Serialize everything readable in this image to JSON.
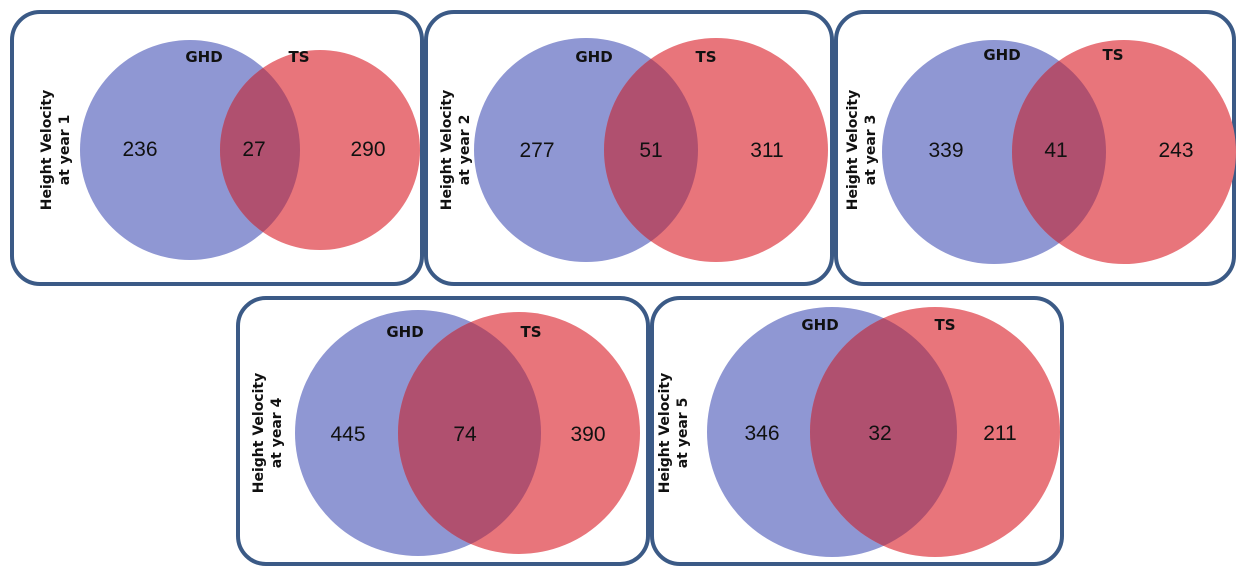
{
  "colors": {
    "left_set": "#8f97d3",
    "right_set": "#e8757b",
    "overlap": "#b0506f",
    "frame": "#3b5a86"
  },
  "set_labels": {
    "left": "GHD",
    "right": "TS"
  },
  "panels": [
    {
      "title_line1": "Height Velocity",
      "title_line2": "at year 1",
      "left_only": "236",
      "both": "27",
      "right_only": "290"
    },
    {
      "title_line1": "Height Velocity",
      "title_line2": "at year 2",
      "left_only": "277",
      "both": "51",
      "right_only": "311"
    },
    {
      "title_line1": "Height Velocity",
      "title_line2": "at year 3",
      "left_only": "339",
      "both": "41",
      "right_only": "243"
    },
    {
      "title_line1": "Height Velocity",
      "title_line2": "at year 4",
      "left_only": "445",
      "both": "74",
      "right_only": "390"
    },
    {
      "title_line1": "Height Velocity",
      "title_line2": "at year 5",
      "left_only": "346",
      "both": "32",
      "right_only": "211"
    }
  ]
}
